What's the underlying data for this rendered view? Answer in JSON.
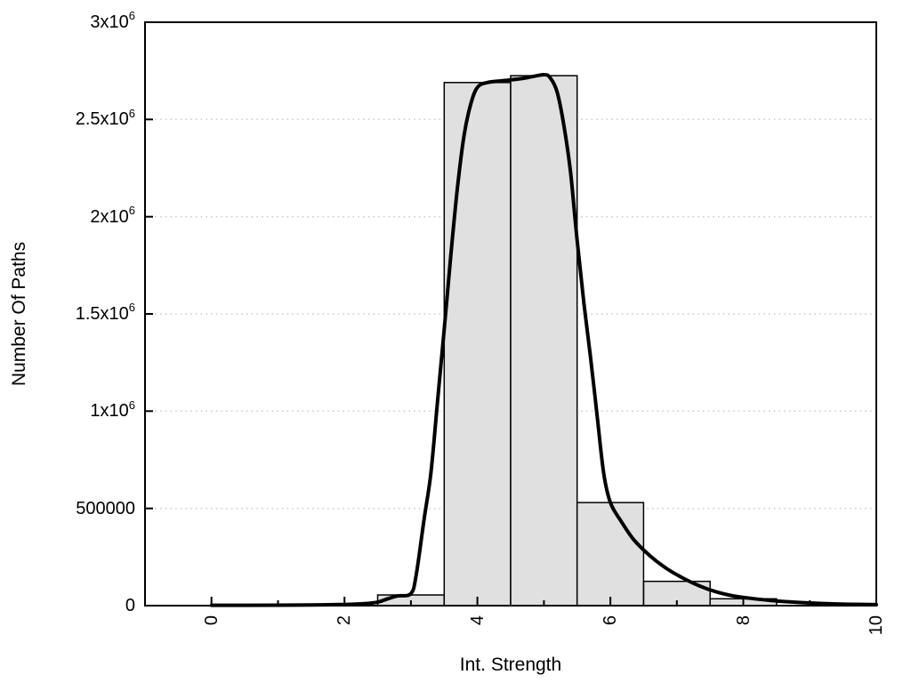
{
  "figure": {
    "background": "#ffffff",
    "axis_color": "#000000",
    "grid_color": "#c8c8c8",
    "bar_fill": "#e0e0e0",
    "bar_stroke": "#000000",
    "curve_color": "#000000",
    "text_color": "#000000"
  },
  "chart_data": {
    "type": "bar",
    "subtype": "histogram-with-smooth-curve-overlay",
    "title": "",
    "xlabel": "Int. Strength",
    "ylabel": "Number Of Paths",
    "xlim": [
      -1,
      10
    ],
    "ylim": [
      0,
      3000000
    ],
    "grid": "horizontal-dotted-lines-at-y-major-ticks",
    "legend": "none",
    "x_ticks": {
      "major": [
        {
          "v": 0,
          "label": "0"
        },
        {
          "v": 2,
          "label": "2"
        },
        {
          "v": 4,
          "label": "4"
        },
        {
          "v": 6,
          "label": "6"
        },
        {
          "v": 8,
          "label": "8"
        },
        {
          "v": 10,
          "label": "10"
        }
      ],
      "minor": [
        1,
        3,
        5,
        7,
        9
      ],
      "label_rotation_deg": -90
    },
    "y_ticks": [
      {
        "v": 0,
        "label": "0"
      },
      {
        "v": 500000,
        "label": "500000"
      },
      {
        "v": 1000000,
        "label": "1x10^6"
      },
      {
        "v": 1500000,
        "label": "1.5x10^6"
      },
      {
        "v": 2000000,
        "label": "2x10^6"
      },
      {
        "v": 2500000,
        "label": "2.5x10^6"
      },
      {
        "v": 3000000,
        "label": "3x10^6"
      }
    ],
    "histogram": {
      "name": "paths-per-intensity-bin",
      "bin_width": 1,
      "bins": [
        {
          "center": 3,
          "count": 55000
        },
        {
          "center": 4,
          "count": 2690000
        },
        {
          "center": 5,
          "count": 2725000
        },
        {
          "center": 6,
          "count": 530000
        },
        {
          "center": 7,
          "count": 125000
        },
        {
          "center": 8,
          "count": 35000
        }
      ]
    },
    "curve": {
      "name": "smooth-distribution-curve",
      "points": [
        [
          0,
          2000
        ],
        [
          0.5,
          2000
        ],
        [
          1,
          2500
        ],
        [
          1.5,
          3500
        ],
        [
          2,
          6000
        ],
        [
          2.3,
          10000
        ],
        [
          2.5,
          18000
        ],
        [
          2.65,
          35000
        ],
        [
          2.8,
          50000
        ],
        [
          3.0,
          62000
        ],
        [
          3.08,
          160000
        ],
        [
          3.2,
          450000
        ],
        [
          3.3,
          680000
        ],
        [
          3.4,
          1050000
        ],
        [
          3.5,
          1420000
        ],
        [
          3.6,
          1800000
        ],
        [
          3.7,
          2150000
        ],
        [
          3.8,
          2420000
        ],
        [
          3.9,
          2580000
        ],
        [
          4.0,
          2665000
        ],
        [
          4.15,
          2690000
        ],
        [
          4.4,
          2700000
        ],
        [
          4.7,
          2712000
        ],
        [
          5.0,
          2730000
        ],
        [
          5.1,
          2712000
        ],
        [
          5.2,
          2640000
        ],
        [
          5.3,
          2470000
        ],
        [
          5.4,
          2230000
        ],
        [
          5.5,
          1880000
        ],
        [
          5.6,
          1560000
        ],
        [
          5.7,
          1280000
        ],
        [
          5.8,
          980000
        ],
        [
          5.9,
          680000
        ],
        [
          6.0,
          530000
        ],
        [
          6.15,
          440000
        ],
        [
          6.35,
          340000
        ],
        [
          6.6,
          255000
        ],
        [
          6.85,
          190000
        ],
        [
          7.1,
          140000
        ],
        [
          7.35,
          100000
        ],
        [
          7.6,
          70000
        ],
        [
          7.85,
          50000
        ],
        [
          8.1,
          38000
        ],
        [
          8.4,
          27000
        ],
        [
          8.7,
          19000
        ],
        [
          9.0,
          13500
        ],
        [
          9.3,
          9500
        ],
        [
          9.6,
          7000
        ],
        [
          10,
          5000
        ]
      ]
    }
  }
}
